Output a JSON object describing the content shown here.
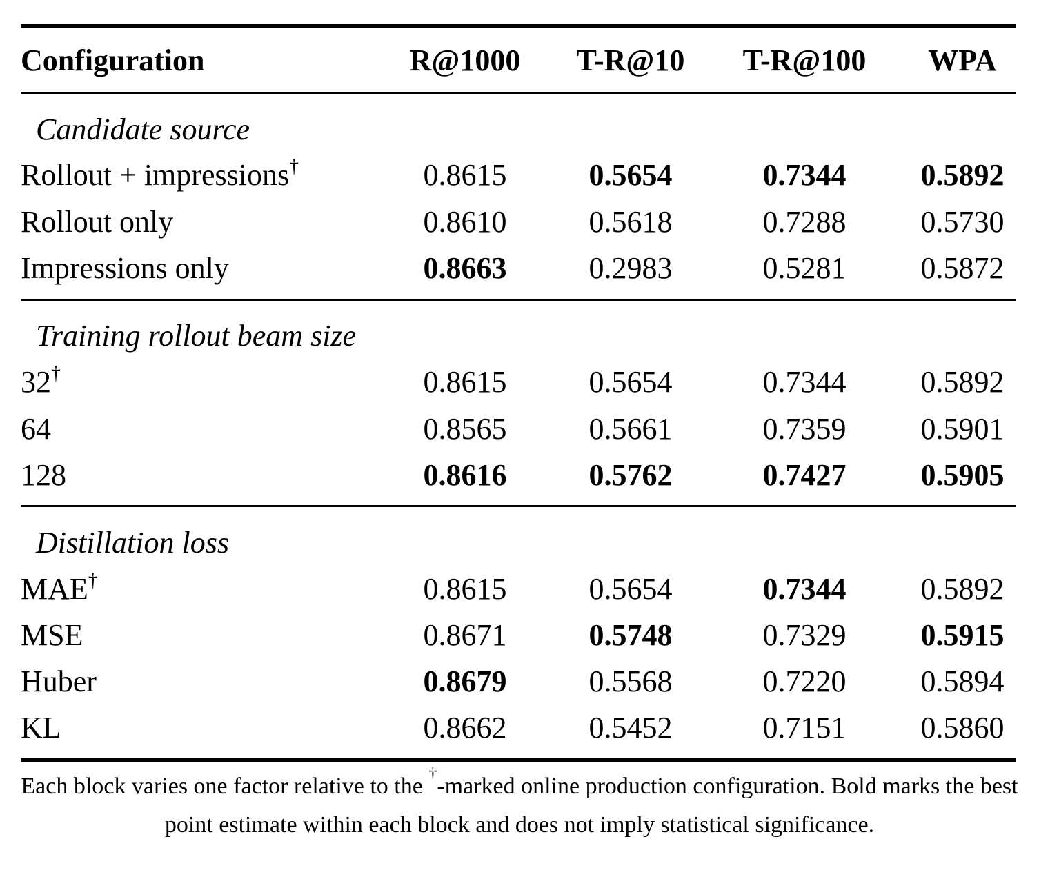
{
  "table": {
    "headers": [
      "Configuration",
      "R@1000",
      "T-R@10",
      "T-R@100",
      "WPA"
    ],
    "blocks": [
      {
        "title": "Candidate source",
        "rows": [
          {
            "label": "Rollout + impressions",
            "dagger": "†",
            "values": [
              "0.8615",
              "0.5654",
              "0.7344",
              "0.5892"
            ],
            "bold": [
              false,
              true,
              true,
              true
            ]
          },
          {
            "label": "Rollout only",
            "dagger": "",
            "values": [
              "0.8610",
              "0.5618",
              "0.7288",
              "0.5730"
            ],
            "bold": [
              false,
              false,
              false,
              false
            ]
          },
          {
            "label": "Impressions only",
            "dagger": "",
            "values": [
              "0.8663",
              "0.2983",
              "0.5281",
              "0.5872"
            ],
            "bold": [
              true,
              false,
              false,
              false
            ]
          }
        ]
      },
      {
        "title": "Training rollout beam size",
        "rows": [
          {
            "label": "32",
            "dagger": "†",
            "values": [
              "0.8615",
              "0.5654",
              "0.7344",
              "0.5892"
            ],
            "bold": [
              false,
              false,
              false,
              false
            ]
          },
          {
            "label": "64",
            "dagger": "",
            "values": [
              "0.8565",
              "0.5661",
              "0.7359",
              "0.5901"
            ],
            "bold": [
              false,
              false,
              false,
              false
            ]
          },
          {
            "label": "128",
            "dagger": "",
            "values": [
              "0.8616",
              "0.5762",
              "0.7427",
              "0.5905"
            ],
            "bold": [
              true,
              true,
              true,
              true
            ]
          }
        ]
      },
      {
        "title": "Distillation loss",
        "rows": [
          {
            "label": "MAE",
            "dagger": "†",
            "values": [
              "0.8615",
              "0.5654",
              "0.7344",
              "0.5892"
            ],
            "bold": [
              false,
              false,
              true,
              false
            ]
          },
          {
            "label": "MSE",
            "dagger": "",
            "values": [
              "0.8671",
              "0.5748",
              "0.7329",
              "0.5915"
            ],
            "bold": [
              false,
              true,
              false,
              true
            ]
          },
          {
            "label": "Huber",
            "dagger": "",
            "values": [
              "0.8679",
              "0.5568",
              "0.7220",
              "0.5894"
            ],
            "bold": [
              true,
              false,
              false,
              false
            ]
          },
          {
            "label": "KL",
            "dagger": "",
            "values": [
              "0.8662",
              "0.5452",
              "0.7151",
              "0.5860"
            ],
            "bold": [
              false,
              false,
              false,
              false
            ]
          }
        ]
      }
    ],
    "footnote": {
      "part1": "Each block varies one factor relative to the ",
      "dagger": "†",
      "part2": "-marked online production configuration. Bold marks the best point estimate within each block and does not imply statistical significance."
    }
  }
}
